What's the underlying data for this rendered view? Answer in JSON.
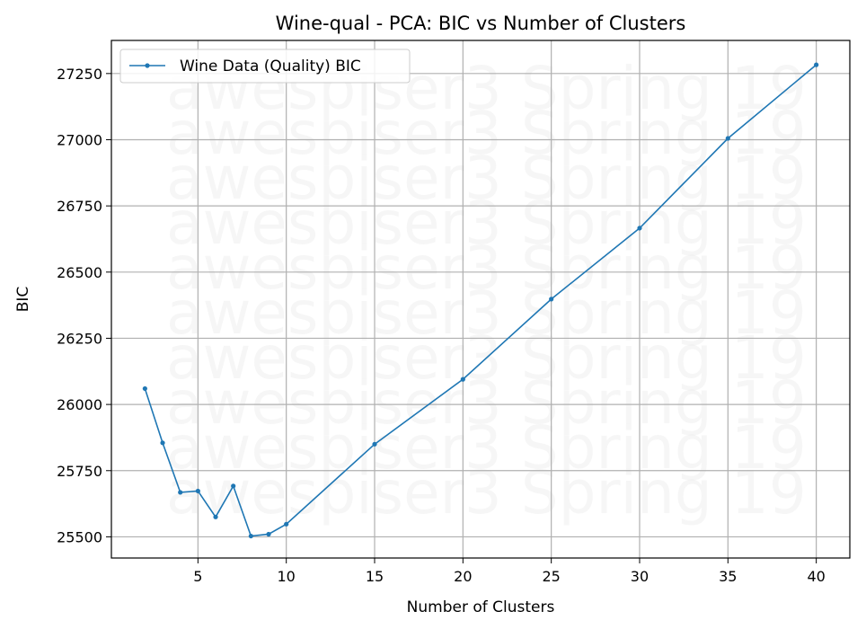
{
  "chart_data": {
    "type": "line",
    "title": "Wine-qual - PCA: BIC vs Number of Clusters",
    "xlabel": "Number of Clusters",
    "ylabel": "BIC",
    "xlim": [
      0.1,
      41.9
    ],
    "ylim": [
      25420,
      27375
    ],
    "xticks": [
      5,
      10,
      15,
      20,
      25,
      30,
      35,
      40
    ],
    "yticks": [
      25500,
      25750,
      26000,
      26250,
      26500,
      26750,
      27000,
      27250
    ],
    "grid": true,
    "legend_position": "top-left",
    "series": [
      {
        "name": "Wine Data (Quality) BIC",
        "color": "#1f77b4",
        "marker": "circle",
        "x": [
          2,
          3,
          4,
          5,
          6,
          7,
          8,
          9,
          10,
          15,
          20,
          25,
          30,
          35,
          40
        ],
        "y": [
          26060,
          25855,
          25668,
          25673,
          25575,
          25692,
          25503,
          25510,
          25548,
          25850,
          26095,
          26398,
          26666,
          27005,
          27283
        ]
      }
    ]
  },
  "watermark": {
    "text": "awespiser3 Spring 19"
  }
}
